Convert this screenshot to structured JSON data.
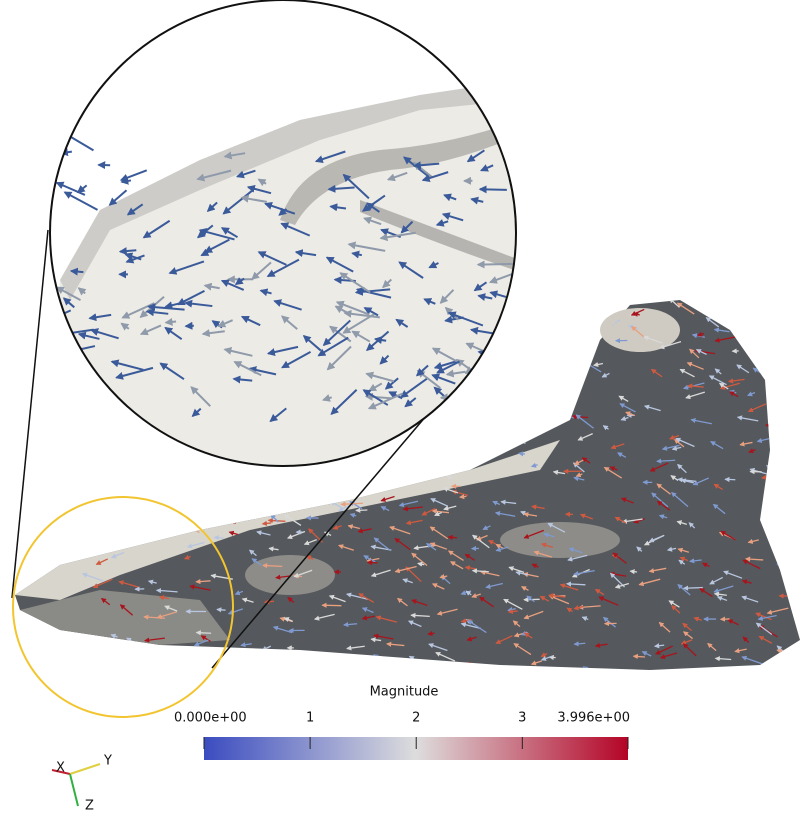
{
  "colorbar": {
    "title": "Magnitude",
    "range": [
      0,
      3.996
    ],
    "ticks": [
      {
        "value": 0,
        "label": "0.000e+00"
      },
      1,
      2,
      3,
      {
        "value": 3.996,
        "label": "3.996e+00"
      }
    ],
    "colors": [
      "#3b4cc0",
      "#dddddd",
      "#b40426"
    ]
  },
  "orientation_axes": {
    "x": "X",
    "y": "Y",
    "z": "Z"
  }
}
